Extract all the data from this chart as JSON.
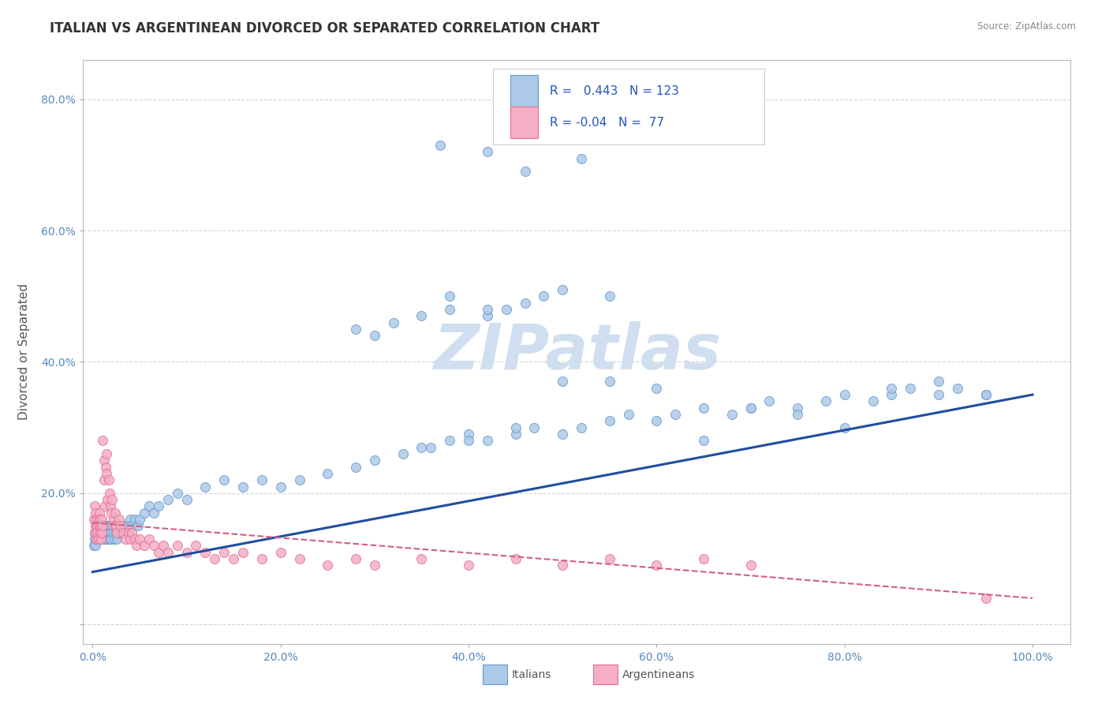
{
  "title": "ITALIAN VS ARGENTINEAN DIVORCED OR SEPARATED CORRELATION CHART",
  "source": "Source: ZipAtlas.com",
  "ylabel": "Divorced or Separated",
  "legend_italians": "Italians",
  "legend_argentineans": "Argentineans",
  "r_italian": 0.443,
  "n_italian": 123,
  "r_argentinean": -0.04,
  "n_argentinean": 77,
  "xlim": [
    -0.01,
    1.04
  ],
  "ylim": [
    -0.03,
    0.86
  ],
  "xticks": [
    0.0,
    0.2,
    0.4,
    0.6,
    0.8,
    1.0
  ],
  "yticks": [
    0.0,
    0.2,
    0.4,
    0.6,
    0.8
  ],
  "xtick_labels": [
    "0.0%",
    "20.0%",
    "40.0%",
    "60.0%",
    "80.0%",
    "100.0%"
  ],
  "ytick_labels": [
    "",
    "20.0%",
    "40.0%",
    "60.0%",
    "80.0%"
  ],
  "color_italian": "#adc9e8",
  "color_argentinean": "#f5aec5",
  "edge_color_italian": "#6699cc",
  "edge_color_argentinean": "#e07090",
  "line_color_italian": "#1f4e9e",
  "line_color_argentinean": "#d06080",
  "background_color": "#ffffff",
  "watermark_text": "ZIPatlas",
  "watermark_color": "#d0dff0",
  "grid_color": "#c8c8c8",
  "title_fontsize": 12,
  "axis_label_fontsize": 11,
  "tick_fontsize": 10,
  "legend_fontsize": 11,
  "italian_x": [
    0.001,
    0.002,
    0.002,
    0.003,
    0.003,
    0.004,
    0.004,
    0.005,
    0.005,
    0.005,
    0.006,
    0.006,
    0.007,
    0.007,
    0.008,
    0.008,
    0.008,
    0.009,
    0.009,
    0.01,
    0.01,
    0.01,
    0.011,
    0.011,
    0.012,
    0.012,
    0.013,
    0.013,
    0.014,
    0.014,
    0.015,
    0.015,
    0.016,
    0.016,
    0.017,
    0.018,
    0.018,
    0.019,
    0.02,
    0.02,
    0.021,
    0.022,
    0.023,
    0.024,
    0.025,
    0.026,
    0.027,
    0.028,
    0.03,
    0.031,
    0.033,
    0.035,
    0.037,
    0.04,
    0.042,
    0.045,
    0.048,
    0.05,
    0.055,
    0.06,
    0.065,
    0.07,
    0.08,
    0.09,
    0.1,
    0.12,
    0.14,
    0.16,
    0.18,
    0.2,
    0.22,
    0.25,
    0.28,
    0.3,
    0.33,
    0.35,
    0.38,
    0.4,
    0.42,
    0.45,
    0.47,
    0.5,
    0.52,
    0.55,
    0.57,
    0.6,
    0.62,
    0.65,
    0.68,
    0.7,
    0.72,
    0.75,
    0.78,
    0.8,
    0.83,
    0.85,
    0.87,
    0.9,
    0.92,
    0.95,
    0.35,
    0.38,
    0.42,
    0.44,
    0.48,
    0.5,
    0.55,
    0.3,
    0.28,
    0.32,
    0.36,
    0.4,
    0.45,
    0.5,
    0.55,
    0.6,
    0.65,
    0.7,
    0.75,
    0.8,
    0.85,
    0.9,
    0.95
  ],
  "italian_y": [
    0.12,
    0.14,
    0.13,
    0.15,
    0.12,
    0.14,
    0.13,
    0.15,
    0.14,
    0.13,
    0.15,
    0.14,
    0.13,
    0.15,
    0.14,
    0.13,
    0.15,
    0.14,
    0.13,
    0.15,
    0.14,
    0.13,
    0.15,
    0.14,
    0.13,
    0.15,
    0.14,
    0.13,
    0.15,
    0.14,
    0.13,
    0.15,
    0.14,
    0.13,
    0.15,
    0.14,
    0.13,
    0.15,
    0.14,
    0.13,
    0.15,
    0.14,
    0.13,
    0.15,
    0.14,
    0.13,
    0.15,
    0.14,
    0.15,
    0.14,
    0.15,
    0.14,
    0.15,
    0.16,
    0.15,
    0.16,
    0.15,
    0.16,
    0.17,
    0.18,
    0.17,
    0.18,
    0.19,
    0.2,
    0.19,
    0.21,
    0.22,
    0.21,
    0.22,
    0.21,
    0.22,
    0.23,
    0.24,
    0.25,
    0.26,
    0.27,
    0.28,
    0.29,
    0.28,
    0.29,
    0.3,
    0.29,
    0.3,
    0.31,
    0.32,
    0.31,
    0.32,
    0.33,
    0.32,
    0.33,
    0.34,
    0.33,
    0.34,
    0.35,
    0.34,
    0.35,
    0.36,
    0.35,
    0.36,
    0.35,
    0.47,
    0.48,
    0.47,
    0.48,
    0.5,
    0.51,
    0.5,
    0.44,
    0.45,
    0.46,
    0.27,
    0.28,
    0.3,
    0.37,
    0.37,
    0.36,
    0.28,
    0.33,
    0.32,
    0.3,
    0.36,
    0.37,
    0.35
  ],
  "argentinean_x": [
    0.001,
    0.002,
    0.002,
    0.003,
    0.003,
    0.004,
    0.004,
    0.005,
    0.005,
    0.006,
    0.006,
    0.007,
    0.007,
    0.008,
    0.008,
    0.009,
    0.009,
    0.01,
    0.01,
    0.011,
    0.011,
    0.012,
    0.012,
    0.013,
    0.014,
    0.015,
    0.015,
    0.016,
    0.017,
    0.018,
    0.019,
    0.02,
    0.021,
    0.022,
    0.023,
    0.024,
    0.025,
    0.026,
    0.028,
    0.03,
    0.032,
    0.035,
    0.038,
    0.04,
    0.042,
    0.045,
    0.047,
    0.05,
    0.055,
    0.06,
    0.065,
    0.07,
    0.075,
    0.08,
    0.09,
    0.1,
    0.11,
    0.12,
    0.13,
    0.14,
    0.15,
    0.16,
    0.18,
    0.2,
    0.22,
    0.25,
    0.28,
    0.3,
    0.35,
    0.4,
    0.45,
    0.5,
    0.55,
    0.6,
    0.65,
    0.7,
    0.95
  ],
  "argentinean_y": [
    0.16,
    0.14,
    0.18,
    0.15,
    0.17,
    0.13,
    0.16,
    0.15,
    0.14,
    0.16,
    0.13,
    0.15,
    0.17,
    0.14,
    0.16,
    0.15,
    0.13,
    0.14,
    0.16,
    0.15,
    0.28,
    0.25,
    0.22,
    0.18,
    0.24,
    0.26,
    0.23,
    0.19,
    0.22,
    0.2,
    0.18,
    0.17,
    0.19,
    0.16,
    0.15,
    0.17,
    0.15,
    0.14,
    0.16,
    0.15,
    0.14,
    0.13,
    0.14,
    0.13,
    0.14,
    0.13,
    0.12,
    0.13,
    0.12,
    0.13,
    0.12,
    0.11,
    0.12,
    0.11,
    0.12,
    0.11,
    0.12,
    0.11,
    0.1,
    0.11,
    0.1,
    0.11,
    0.1,
    0.11,
    0.1,
    0.09,
    0.1,
    0.09,
    0.1,
    0.09,
    0.1,
    0.09,
    0.1,
    0.09,
    0.1,
    0.09,
    0.04
  ],
  "it_trend_x0": 0.0,
  "it_trend_y0": 0.08,
  "it_trend_x1": 1.0,
  "it_trend_y1": 0.35,
  "ar_trend_x0": 0.0,
  "ar_trend_y0": 0.155,
  "ar_trend_x1": 1.0,
  "ar_trend_y1": 0.04
}
